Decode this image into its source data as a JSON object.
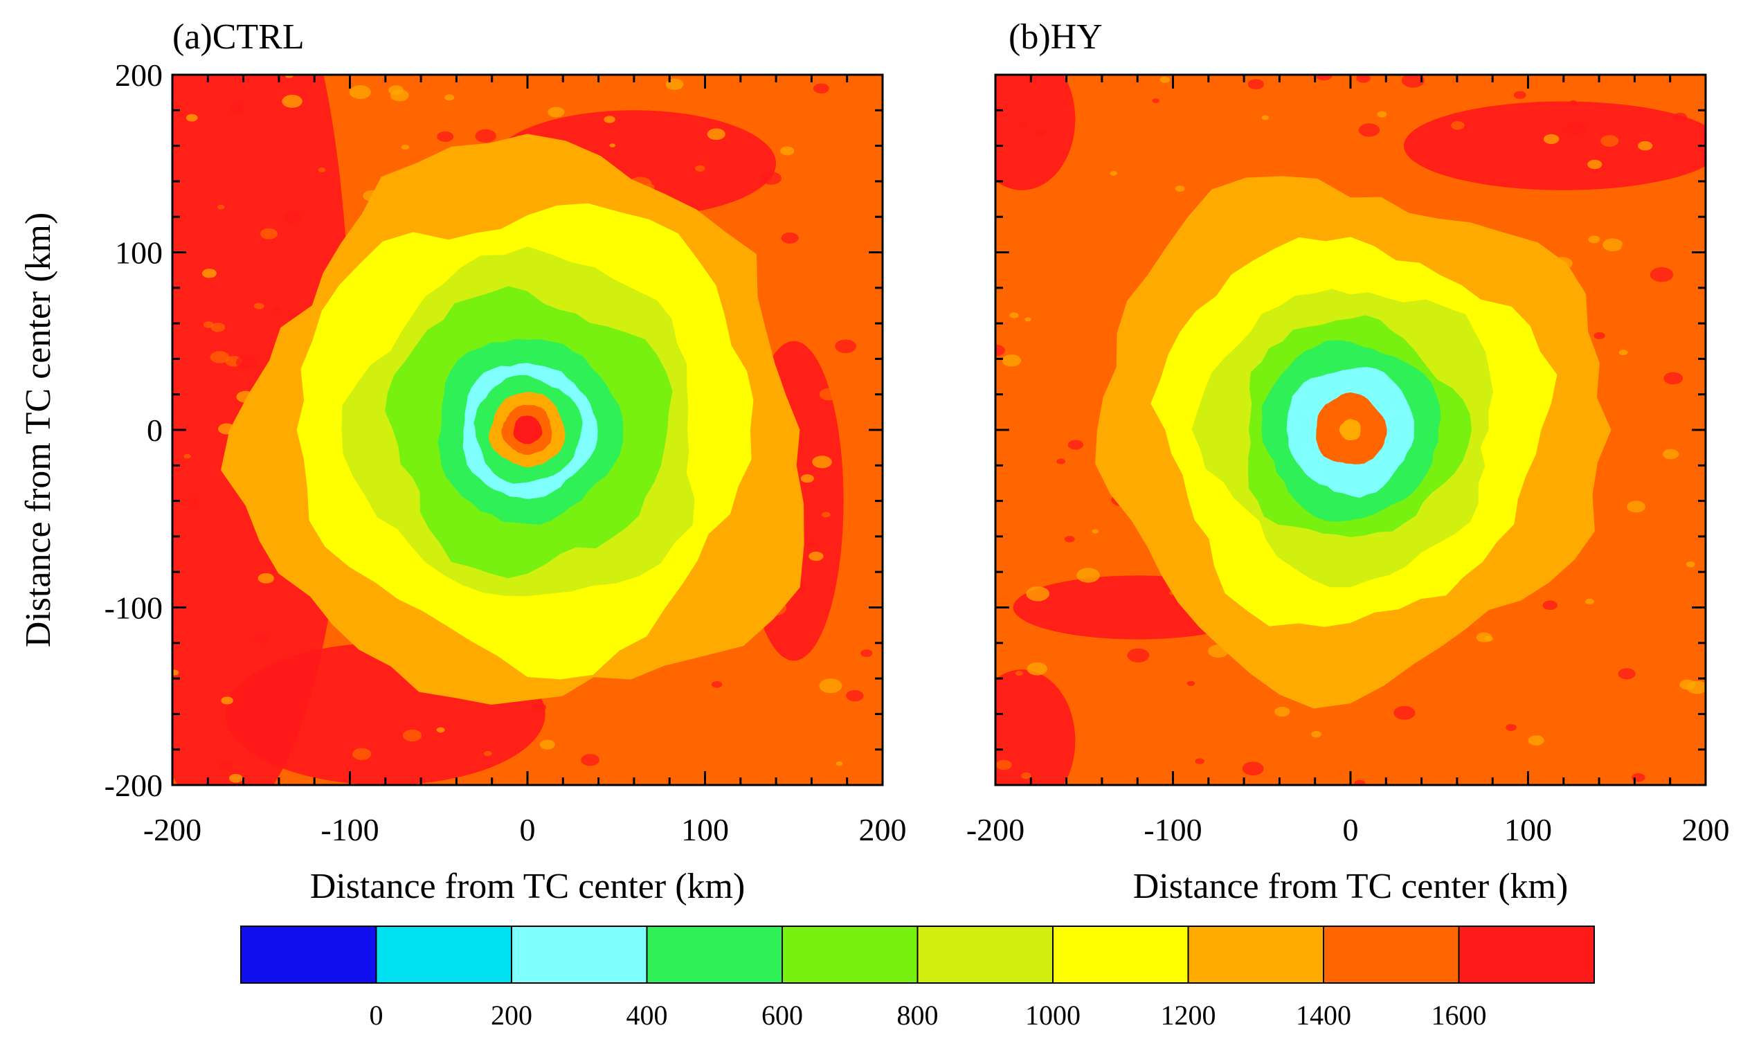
{
  "chart_data": [
    {
      "type": "heatmap",
      "title": "(a)CTRL",
      "xlabel": "Distance from TC center (km)",
      "ylabel": "Distance from TC center (km)",
      "xlim": [
        -200,
        200
      ],
      "ylim": [
        -200,
        200
      ],
      "xticks": [
        "-200",
        "-100",
        "0",
        "100",
        "200"
      ],
      "yticks": [
        "200",
        "100",
        "0",
        "-100",
        "-200"
      ],
      "structure": {
        "ring_radii_km": [
          8,
          14,
          21,
          30,
          38,
          52,
          78,
          98,
          128,
          158
        ],
        "ring_levels": [
          1600,
          1400,
          1200,
          400,
          200,
          400,
          600,
          800,
          1000,
          1200
        ],
        "background_level": 1400,
        "outer_arc_level": 1600
      }
    },
    {
      "type": "heatmap",
      "title": "(b)HY",
      "xlabel": "Distance from TC center (km)",
      "xlim": [
        -200,
        200
      ],
      "ylim": [
        -200,
        200
      ],
      "xticks": [
        "-200",
        "-100",
        "0",
        "100",
        "200"
      ],
      "structure": {
        "ring_radii_km": [
          6,
          12,
          20,
          28,
          36,
          50,
          62,
          82,
          108,
          142
        ],
        "ring_levels": [
          1200,
          1400,
          1400,
          200,
          200,
          400,
          600,
          800,
          1000,
          1200
        ],
        "background_level": 1400,
        "outer_arc_level": 1600
      }
    }
  ],
  "colorbar": {
    "colors": [
      "#1010ee",
      "#00e0f0",
      "#80ffff",
      "#30f058",
      "#78f010",
      "#d2f010",
      "#ffff00",
      "#ffaa00",
      "#ff6600",
      "#ff1a1a"
    ],
    "labels": [
      "0",
      "200",
      "400",
      "600",
      "800",
      "1000",
      "1200",
      "1400",
      "1600"
    ],
    "levels": [
      null,
      0,
      200,
      400,
      600,
      800,
      1000,
      1200,
      1400,
      1600
    ]
  }
}
